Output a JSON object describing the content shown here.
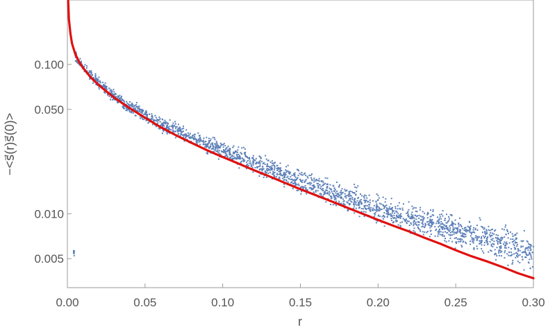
{
  "chart_data": {
    "type": "scatter",
    "title": "",
    "xlabel": "r",
    "ylabel": "−<s⃗(r)s⃗(0)>",
    "xlim": [
      0.0,
      0.3
    ],
    "ylim": [
      0.0032,
      0.27
    ],
    "yscale": "log",
    "grid": false,
    "legend": "none",
    "x_ticks": [
      {
        "value": 0.0,
        "label": "0.00"
      },
      {
        "value": 0.05,
        "label": "0.05"
      },
      {
        "value": 0.1,
        "label": "0.10"
      },
      {
        "value": 0.15,
        "label": "0.15"
      },
      {
        "value": 0.2,
        "label": "0.20"
      },
      {
        "value": 0.25,
        "label": "0.25"
      },
      {
        "value": 0.3,
        "label": "0.30"
      }
    ],
    "y_ticks": [
      {
        "value": 0.005,
        "label": "0.005"
      },
      {
        "value": 0.01,
        "label": "0.010"
      },
      {
        "value": 0.05,
        "label": "0.050"
      },
      {
        "value": 0.1,
        "label": "0.100"
      }
    ],
    "series": [
      {
        "type": "scatter",
        "color": "#5b7fb8",
        "description_points": [
          [
            0.005,
            0.115
          ],
          [
            0.01,
            0.095
          ],
          [
            0.02,
            0.075
          ],
          [
            0.03,
            0.062
          ],
          [
            0.04,
            0.052
          ],
          [
            0.05,
            0.046
          ],
          [
            0.06,
            0.04
          ],
          [
            0.07,
            0.036
          ],
          [
            0.08,
            0.032
          ],
          [
            0.09,
            0.029
          ],
          [
            0.1,
            0.026
          ],
          [
            0.11,
            0.024
          ],
          [
            0.12,
            0.022
          ],
          [
            0.13,
            0.02
          ],
          [
            0.14,
            0.018
          ],
          [
            0.15,
            0.0165
          ],
          [
            0.16,
            0.015
          ],
          [
            0.17,
            0.0138
          ],
          [
            0.18,
            0.0128
          ],
          [
            0.19,
            0.0118
          ],
          [
            0.2,
            0.0108
          ],
          [
            0.21,
            0.01
          ],
          [
            0.22,
            0.0094
          ],
          [
            0.23,
            0.0088
          ],
          [
            0.24,
            0.0082
          ],
          [
            0.25,
            0.0077
          ],
          [
            0.26,
            0.0072
          ],
          [
            0.27,
            0.0068
          ],
          [
            0.28,
            0.0064
          ],
          [
            0.29,
            0.006
          ],
          [
            0.3,
            0.0056
          ]
        ]
      },
      {
        "type": "line",
        "color": "#e01010",
        "points": [
          [
            0.0005,
            0.27
          ],
          [
            0.001,
            0.2
          ],
          [
            0.002,
            0.16
          ],
          [
            0.003,
            0.138
          ],
          [
            0.005,
            0.118
          ],
          [
            0.0075,
            0.104
          ],
          [
            0.01,
            0.095
          ],
          [
            0.015,
            0.082
          ],
          [
            0.02,
            0.073
          ],
          [
            0.03,
            0.06
          ],
          [
            0.04,
            0.051
          ],
          [
            0.05,
            0.044
          ],
          [
            0.06,
            0.038
          ],
          [
            0.07,
            0.0335
          ],
          [
            0.08,
            0.0298
          ],
          [
            0.09,
            0.0266
          ],
          [
            0.1,
            0.024
          ],
          [
            0.11,
            0.0217
          ],
          [
            0.12,
            0.0196
          ],
          [
            0.13,
            0.0178
          ],
          [
            0.14,
            0.0161
          ],
          [
            0.15,
            0.0146
          ],
          [
            0.16,
            0.0133
          ],
          [
            0.17,
            0.0121
          ],
          [
            0.18,
            0.011
          ],
          [
            0.19,
            0.01
          ],
          [
            0.2,
            0.0091
          ],
          [
            0.21,
            0.0083
          ],
          [
            0.22,
            0.0076
          ],
          [
            0.23,
            0.0069
          ],
          [
            0.24,
            0.0063
          ],
          [
            0.25,
            0.0057
          ],
          [
            0.26,
            0.0052
          ],
          [
            0.27,
            0.0048
          ],
          [
            0.28,
            0.0044
          ],
          [
            0.29,
            0.004
          ],
          [
            0.3,
            0.0037
          ]
        ]
      }
    ]
  }
}
